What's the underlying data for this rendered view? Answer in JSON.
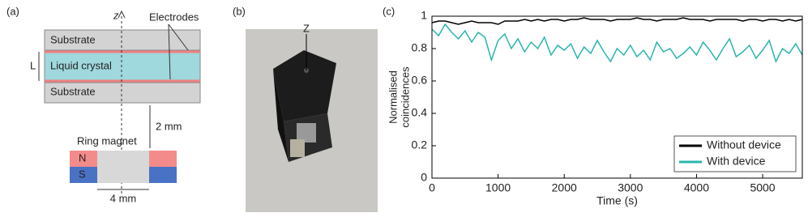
{
  "panel_a": {
    "label": "(a)",
    "axis": "z",
    "electrodes": "Electrodes",
    "substrate_top": "Substrate",
    "thickness": "L",
    "liquid_crystal": "Liquid crystal",
    "substrate_bottom": "Substrate",
    "gap": "2 mm",
    "magnet": "Ring magnet",
    "north": "N",
    "south": "S",
    "width": "4 mm"
  },
  "panel_b": {
    "label": "(b)",
    "axis": "Z"
  },
  "chart_data": {
    "type": "line",
    "panel_label": "(c)",
    "xlabel": "Time (s)",
    "ylabel": [
      "Normalised",
      "coincidences"
    ],
    "x": [
      0,
      100,
      200,
      300,
      400,
      500,
      600,
      700,
      800,
      900,
      1000,
      1100,
      1200,
      1300,
      1400,
      1500,
      1600,
      1700,
      1800,
      1900,
      2000,
      2100,
      2200,
      2300,
      2400,
      2500,
      2600,
      2700,
      2800,
      2900,
      3000,
      3100,
      3200,
      3300,
      3400,
      3500,
      3600,
      3700,
      3800,
      3900,
      4000,
      4100,
      4200,
      4300,
      4400,
      4500,
      4600,
      4700,
      4800,
      4900,
      5000,
      5100,
      5200,
      5300,
      5400,
      5500,
      5600
    ],
    "series": [
      {
        "name": "Without device",
        "color": "#000000",
        "values": [
          0.96,
          0.97,
          0.97,
          0.96,
          0.95,
          0.96,
          0.97,
          0.96,
          0.96,
          0.96,
          0.95,
          0.97,
          0.97,
          0.97,
          0.98,
          0.97,
          0.98,
          0.97,
          0.98,
          0.98,
          0.97,
          0.98,
          0.98,
          0.99,
          0.98,
          0.98,
          0.98,
          0.97,
          0.98,
          0.98,
          0.98,
          0.99,
          0.98,
          0.98,
          0.97,
          0.98,
          0.98,
          0.98,
          0.99,
          0.98,
          0.98,
          0.98,
          0.97,
          0.98,
          0.98,
          0.98,
          0.98,
          0.97,
          0.98,
          0.98,
          0.97,
          0.98,
          0.98,
          0.97,
          0.98,
          0.97,
          0.98
        ]
      },
      {
        "name": "With device",
        "color": "#2ab5ad",
        "values": [
          0.92,
          0.88,
          0.95,
          0.9,
          0.86,
          0.91,
          0.84,
          0.9,
          0.87,
          0.73,
          0.85,
          0.89,
          0.8,
          0.86,
          0.78,
          0.84,
          0.8,
          0.87,
          0.76,
          0.82,
          0.79,
          0.83,
          0.74,
          0.81,
          0.77,
          0.85,
          0.78,
          0.72,
          0.8,
          0.76,
          0.82,
          0.75,
          0.79,
          0.73,
          0.84,
          0.78,
          0.8,
          0.74,
          0.77,
          0.81,
          0.76,
          0.84,
          0.79,
          0.73,
          0.8,
          0.86,
          0.75,
          0.78,
          0.82,
          0.74,
          0.79,
          0.85,
          0.72,
          0.8,
          0.77,
          0.83,
          0.76
        ]
      }
    ],
    "xlim": [
      0,
      5600
    ],
    "xticks": [
      0,
      1000,
      2000,
      3000,
      4000,
      5000
    ],
    "ylim": [
      0,
      1
    ],
    "yticks": [
      0,
      0.2,
      0.4,
      0.6,
      0.8,
      1
    ],
    "legend": "lower right"
  }
}
